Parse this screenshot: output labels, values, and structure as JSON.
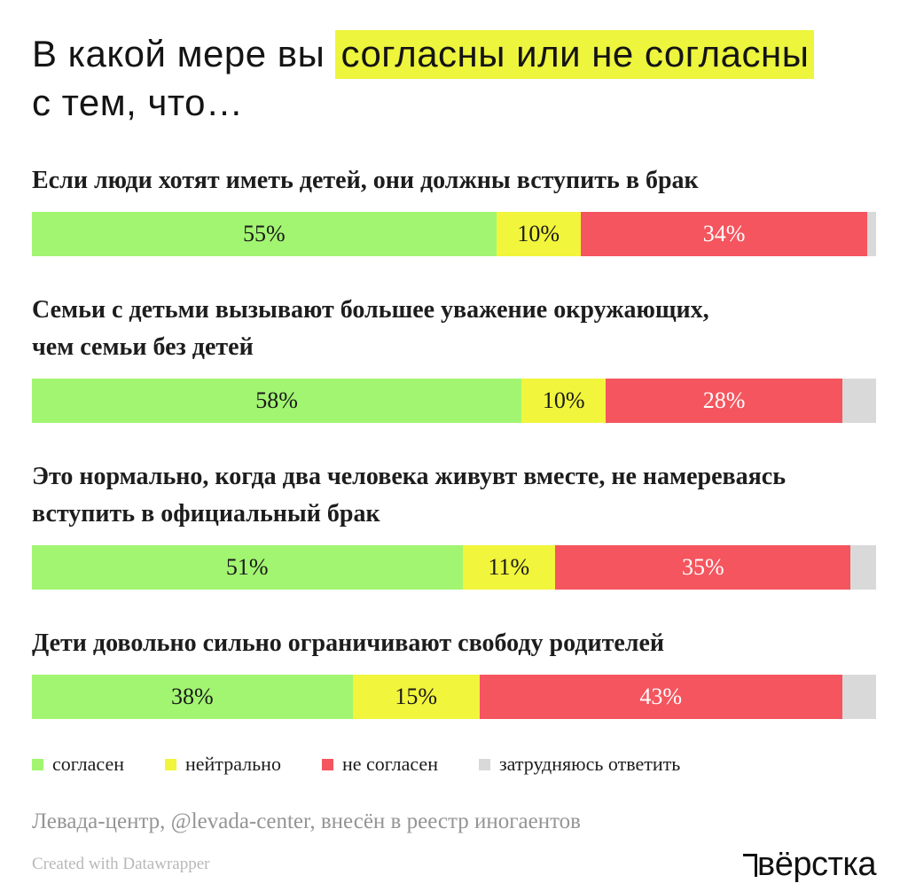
{
  "title": {
    "pre_highlight": "В какой мере вы ",
    "highlight": "согласны или не согласны",
    "line2": "с тем, что…"
  },
  "colors": {
    "agree": "#a2f571",
    "neutral": "#f1f53c",
    "disagree": "#f4555e",
    "undecided": "#d9d9d9",
    "title_highlight": "#edf53d"
  },
  "chart_data": {
    "type": "bar",
    "stacked": true,
    "orientation": "horizontal",
    "unit": "%",
    "xlim": [
      0,
      100
    ],
    "grid": false,
    "legend_position": "bottom",
    "categories": [
      "Если люди хотят иметь детей, они должны вступить в брак",
      "Семьи с детьми вызывают большее уважение окружающих,\nчем семьи без детей",
      "Это нормально, когда два человека живувт вместе, не намереваясь\nвступить в официальный брак",
      "Дети довольно сильно ограничивают свободу родителей"
    ],
    "series": [
      {
        "key": "agree",
        "name": "согласен",
        "values": [
          55,
          58,
          51,
          38
        ],
        "labeled": true,
        "label_color": "#1a1a1a"
      },
      {
        "key": "neutral",
        "name": "нейтрально",
        "values": [
          10,
          10,
          11,
          15
        ],
        "labeled": true,
        "label_color": "#1a1a1a"
      },
      {
        "key": "disagree",
        "name": "не согласен",
        "values": [
          34,
          28,
          35,
          43
        ],
        "labeled": true,
        "label_color": "#ffffff"
      },
      {
        "key": "undecided",
        "name": "затрудняюсь ответить",
        "values": [
          1,
          4,
          3,
          4
        ],
        "labeled": false,
        "label_color": "#1a1a1a",
        "estimated": true
      }
    ]
  },
  "footer": {
    "attribution": "Левада-центр, @levada-center, внесён в реестр иногаентов",
    "created_with": "Created with Datawrapper",
    "logo": "вёрстка"
  }
}
